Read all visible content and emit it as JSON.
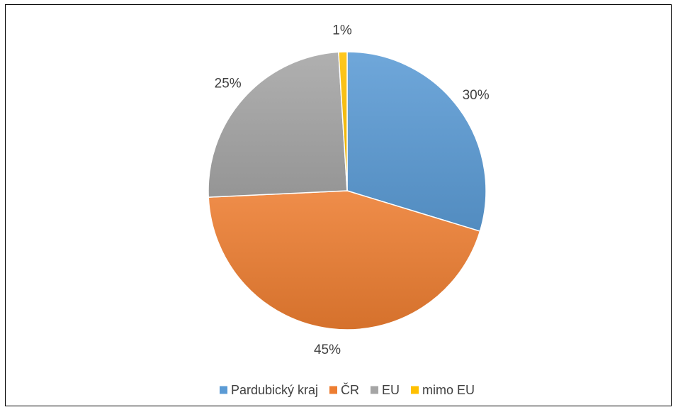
{
  "chart_data": {
    "type": "pie",
    "title": "",
    "categories": [
      "Pardubický kraj",
      "ČR",
      "EU",
      "mimo EU"
    ],
    "values": [
      30,
      45,
      25,
      1
    ],
    "data_labels": [
      "30%",
      "45%",
      "25%",
      "1%"
    ],
    "colors": [
      "#5B9BD5",
      "#ED7D31",
      "#A5A5A5",
      "#FFC000"
    ],
    "legend_position": "bottom",
    "start_angle_deg": 0,
    "direction": "clockwise"
  }
}
